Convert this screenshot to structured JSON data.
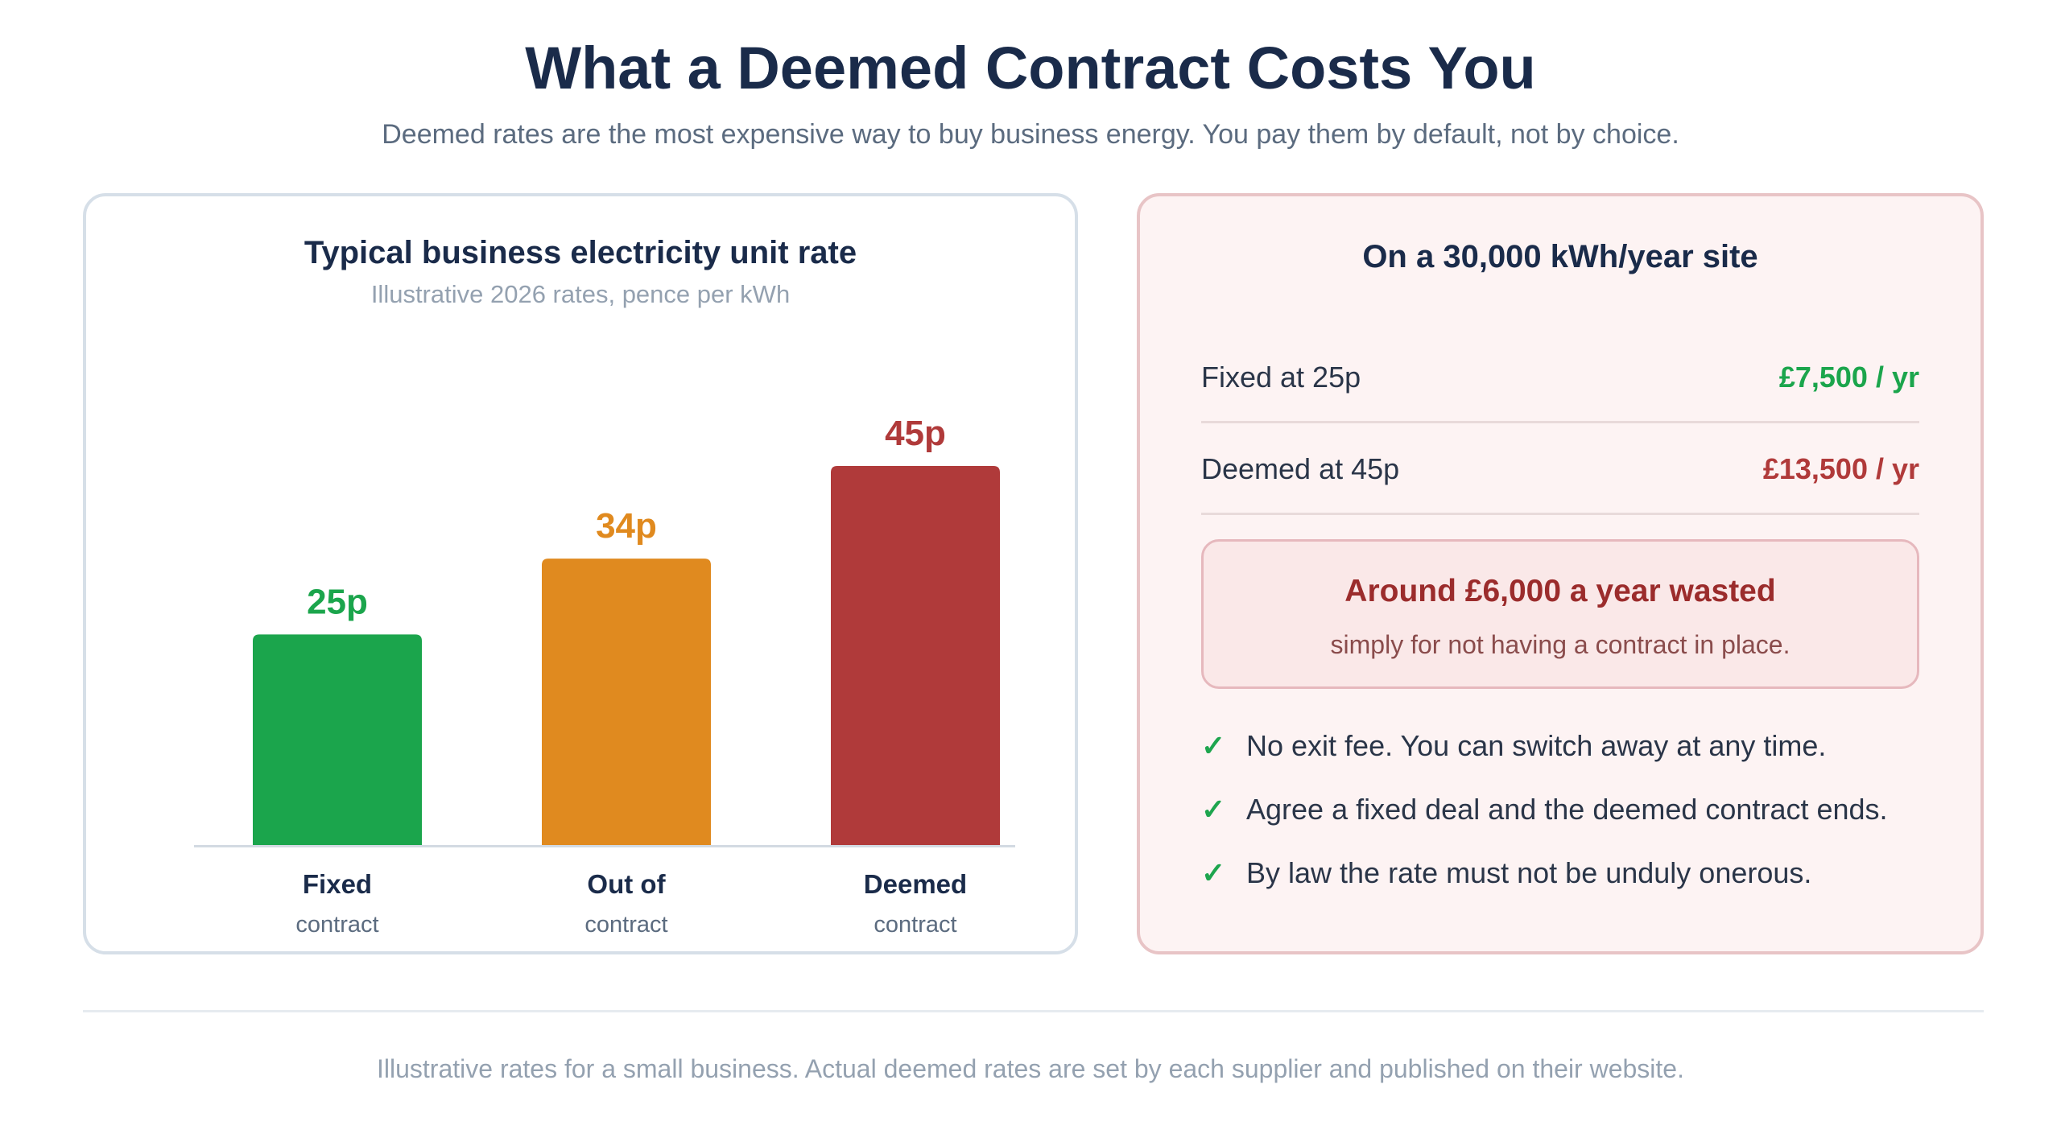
{
  "header": {
    "title": "What a Deemed Contract Costs You",
    "subtitle": "Deemed rates are the most expensive way to buy business energy. You pay them by default, not by choice."
  },
  "chart_data": {
    "type": "bar",
    "title": "Typical business electricity unit rate",
    "subtitle": "Illustrative 2026 rates, pence per kWh",
    "categories": [
      "Fixed",
      "Out of",
      "Deemed"
    ],
    "category_sublabels": [
      "contract",
      "contract",
      "contract"
    ],
    "values": [
      25,
      34,
      45
    ],
    "value_labels": [
      "25p",
      "34p",
      "45p"
    ],
    "colors": [
      "#1ba54c",
      "#e08a1f",
      "#b03a3a"
    ],
    "ylim": [
      0,
      45
    ],
    "grid": false,
    "xlabel": "",
    "ylabel": ""
  },
  "info": {
    "title": "On a 30,000 kWh/year site",
    "rows": [
      {
        "label": "Fixed at 25p",
        "value": "£7,500 / yr",
        "color": "#1ba54c"
      },
      {
        "label": "Deemed at 45p",
        "value": "£13,500 / yr",
        "color": "#b03a3a"
      }
    ],
    "callout": {
      "main": "Around £6,000 a year wasted",
      "sub": "simply for not having a contract in place."
    },
    "benefits": [
      "No exit fee. You can switch away at any time.",
      "Agree a fixed deal and the deemed contract ends.",
      "By law the rate must not be unduly onerous."
    ],
    "check_icon": "check-icon"
  },
  "footer": {
    "note": "Illustrative rates for a small business. Actual deemed rates are set by each supplier and published on their website."
  }
}
